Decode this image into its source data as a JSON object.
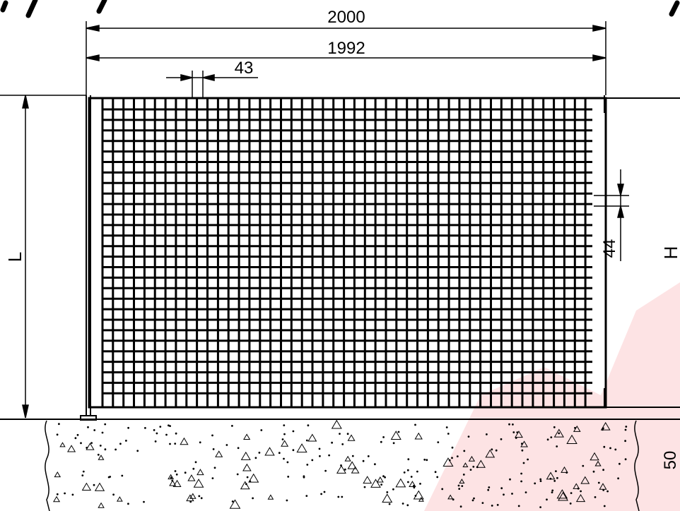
{
  "drawing": {
    "dimensions": {
      "overall_width": "2000",
      "inner_width": "1992",
      "bar_pitch_horizontal": "43",
      "bar_pitch_vertical": "44",
      "length_label": "L",
      "height_label": "H",
      "foundation_depth": "50"
    },
    "colors": {
      "line": "#000000",
      "watermark": "#ee1c25",
      "background": "#ffffff"
    }
  }
}
